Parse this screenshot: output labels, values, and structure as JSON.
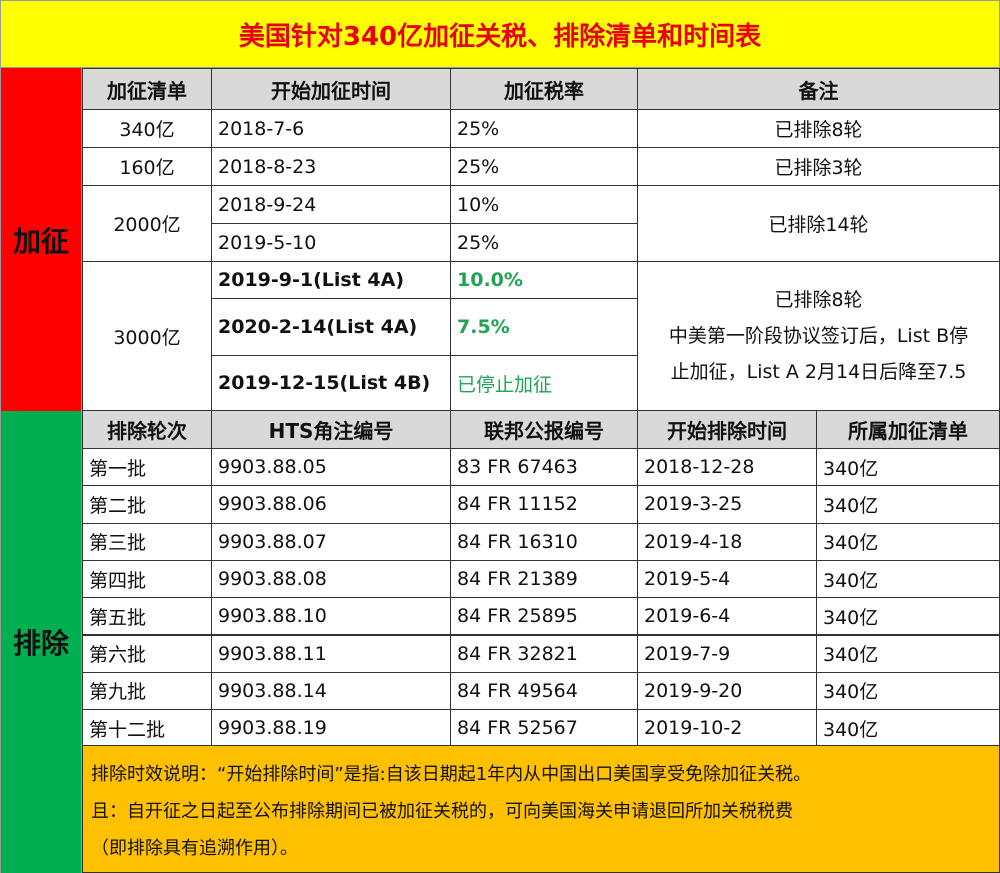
{
  "title": "美国针对340亿加征关税、排除清单和时间表",
  "sections": {
    "tariff": "加征",
    "exclusion": "排除"
  },
  "tariff_table": {
    "headers": [
      "加征清单",
      "开始加征时间",
      "加征税率",
      "备注"
    ],
    "lists": [
      {
        "name": "340亿",
        "dates": [
          "2018-7-6"
        ],
        "rates": [
          "25%"
        ],
        "note": [
          "已排除8轮"
        ]
      },
      {
        "name": "160亿",
        "dates": [
          "2018-8-23"
        ],
        "rates": [
          "25%"
        ],
        "note": [
          "已排除3轮"
        ]
      },
      {
        "name": "2000亿",
        "dates": [
          "2018-9-24",
          "2019-5-10"
        ],
        "rates": [
          "10%",
          "25%"
        ],
        "note": [
          "已排除14轮"
        ]
      },
      {
        "name": "3000亿",
        "dates": [
          "2019-9-1(List 4A)",
          "2020-2-14(List 4A)",
          "2019-12-15(List 4B)"
        ],
        "rates": [
          "10.0%",
          "7.5%",
          "已停止加征"
        ],
        "note": [
          "已排除8轮",
          "中美第一阶段协议签订后，List B停",
          "止加征，List A 2月14日后降至7.5"
        ]
      }
    ]
  },
  "exclusion_table": {
    "headers": [
      "排除轮次",
      "HTS角注编号",
      "联邦公报编号",
      "开始排除时间",
      "所属加征清单"
    ],
    "rows": [
      [
        "第一批",
        "9903.88.05",
        "83 FR 67463",
        "2018-12-28",
        "340亿"
      ],
      [
        "第二批",
        "9903.88.06",
        "84 FR 11152",
        "2019-3-25",
        "340亿"
      ],
      [
        "第三批",
        "9903.88.07",
        "84 FR 16310",
        "2019-4-18",
        "340亿"
      ],
      [
        "第四批",
        "9903.88.08",
        "84 FR 21389",
        "2019-5-4",
        "340亿"
      ],
      [
        "第五批",
        "9903.88.10",
        "84 FR 25895",
        "2019-6-4",
        "340亿"
      ],
      [
        "第六批",
        "9903.88.11",
        "84 FR 32821",
        "2019-7-9",
        "340亿"
      ],
      [
        "第九批",
        "9903.88.14",
        "84 FR 49564",
        "2019-9-20",
        "340亿"
      ],
      [
        "第十二批",
        "9903.88.19",
        "84 FR 52567",
        "2019-10-2",
        "340亿"
      ]
    ]
  },
  "footnote": [
    "排除时效说明：“开始排除时间”是指:自该日期起1年内从中国出口美国享受免除加征关税。",
    "且：自开征之日起至公布排除期间已被加征关税的，可向美国海关申请退回所加关税税费",
    "（即排除具有追溯作用）。"
  ],
  "colors": {
    "title_bg": "#ffff00",
    "title_text": "#e60012",
    "tariff_side": "#ff0000",
    "exclusion_side": "#00b050",
    "footnote_bg": "#ffc000",
    "green_text": "#21a355"
  }
}
